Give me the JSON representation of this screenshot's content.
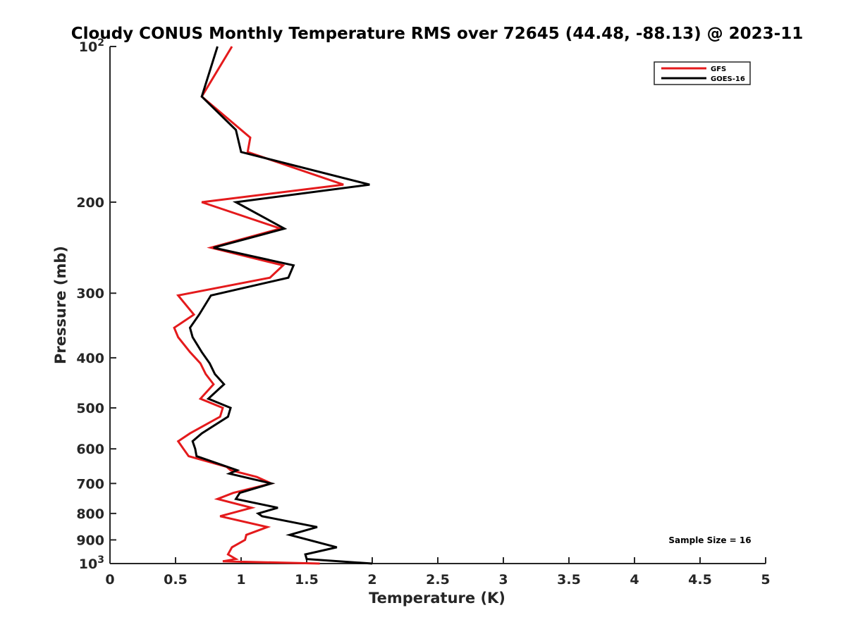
{
  "chart_data": {
    "type": "line",
    "title": "Cloudy CONUS Monthly Temperature RMS over 72645 (44.48, -88.13) @ 2023-11",
    "xlabel": "Temperature (K)",
    "ylabel": "Pressure (mb)",
    "xlim": [
      0,
      5
    ],
    "ylim": [
      100,
      1000
    ],
    "y_scale": "log",
    "y_reversed": true,
    "xticks": [
      0,
      0.5,
      1,
      1.5,
      2,
      2.5,
      3,
      3.5,
      4,
      4.5,
      5
    ],
    "xtick_labels": [
      "0",
      "0.5",
      "1",
      "1.5",
      "2",
      "2.5",
      "3",
      "3.5",
      "4",
      "4.5",
      "5"
    ],
    "yticks": [
      100,
      200,
      300,
      400,
      500,
      600,
      700,
      800,
      900,
      1000
    ],
    "ytick_labels": [
      {
        "base": "10",
        "exp": "2"
      },
      {
        "base": "200",
        "exp": ""
      },
      {
        "base": "300",
        "exp": ""
      },
      {
        "base": "400",
        "exp": ""
      },
      {
        "base": "500",
        "exp": ""
      },
      {
        "base": "600",
        "exp": ""
      },
      {
        "base": "700",
        "exp": ""
      },
      {
        "base": "800",
        "exp": ""
      },
      {
        "base": "900",
        "exp": ""
      },
      {
        "base": "10",
        "exp": "3"
      }
    ],
    "grid": false,
    "legend_position": "top-right",
    "annotation": "Sample Size = 16",
    "series": [
      {
        "name": "GFS",
        "color": "#e41a1c",
        "points": [
          [
            0.93,
            100
          ],
          [
            0.7,
            125
          ],
          [
            1.07,
            150
          ],
          [
            1.05,
            160
          ],
          [
            1.78,
            185
          ],
          [
            0.7,
            200
          ],
          [
            1.3,
            225
          ],
          [
            0.77,
            245
          ],
          [
            1.32,
            265
          ],
          [
            1.22,
            280
          ],
          [
            0.52,
            303
          ],
          [
            0.64,
            330
          ],
          [
            0.49,
            350
          ],
          [
            0.52,
            365
          ],
          [
            0.61,
            390
          ],
          [
            0.69,
            410
          ],
          [
            0.73,
            430
          ],
          [
            0.79,
            450
          ],
          [
            0.69,
            480
          ],
          [
            0.86,
            500
          ],
          [
            0.84,
            520
          ],
          [
            0.61,
            560
          ],
          [
            0.52,
            580
          ],
          [
            0.56,
            600
          ],
          [
            0.6,
            620
          ],
          [
            0.89,
            650
          ],
          [
            0.92,
            660
          ],
          [
            1.12,
            680
          ],
          [
            1.23,
            700
          ],
          [
            0.94,
            730
          ],
          [
            0.82,
            750
          ],
          [
            1.08,
            780
          ],
          [
            0.84,
            810
          ],
          [
            1.2,
            850
          ],
          [
            1.04,
            880
          ],
          [
            1.03,
            900
          ],
          [
            0.93,
            930
          ],
          [
            0.9,
            960
          ],
          [
            0.96,
            980
          ],
          [
            0.86,
            990
          ],
          [
            1.6,
            1000
          ]
        ]
      },
      {
        "name": "GOES-16",
        "color": "#000000",
        "points": [
          [
            0.82,
            100
          ],
          [
            0.7,
            125
          ],
          [
            0.96,
            145
          ],
          [
            1.0,
            160
          ],
          [
            1.98,
            185
          ],
          [
            0.96,
            200
          ],
          [
            1.33,
            225
          ],
          [
            0.79,
            245
          ],
          [
            1.4,
            265
          ],
          [
            1.36,
            280
          ],
          [
            0.77,
            303
          ],
          [
            0.68,
            330
          ],
          [
            0.61,
            350
          ],
          [
            0.63,
            365
          ],
          [
            0.7,
            390
          ],
          [
            0.76,
            410
          ],
          [
            0.8,
            430
          ],
          [
            0.87,
            450
          ],
          [
            0.75,
            480
          ],
          [
            0.92,
            500
          ],
          [
            0.9,
            520
          ],
          [
            0.7,
            560
          ],
          [
            0.63,
            580
          ],
          [
            0.65,
            600
          ],
          [
            0.66,
            620
          ],
          [
            0.97,
            660
          ],
          [
            0.91,
            670
          ],
          [
            1.23,
            700
          ],
          [
            0.99,
            730
          ],
          [
            0.96,
            750
          ],
          [
            1.28,
            780
          ],
          [
            1.13,
            800
          ],
          [
            1.16,
            810
          ],
          [
            1.58,
            850
          ],
          [
            1.37,
            880
          ],
          [
            1.73,
            930
          ],
          [
            1.49,
            960
          ],
          [
            1.5,
            980
          ],
          [
            2.0,
            1000
          ]
        ]
      }
    ]
  }
}
